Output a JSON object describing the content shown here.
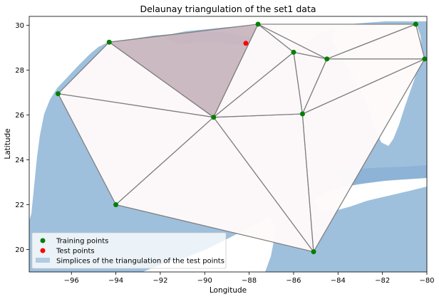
{
  "chart_data": {
    "type": "scatter",
    "title": "Delaunay triangulation of the set1 data",
    "xlabel": "Longitude",
    "ylabel": "Latitude",
    "xlim": [
      -97.9,
      -80.0
    ],
    "ylim": [
      19.0,
      30.4
    ],
    "x_ticks": [
      -96,
      -94,
      -92,
      -90,
      -88,
      -86,
      -84,
      -82,
      -80
    ],
    "y_ticks": [
      20,
      22,
      24,
      26,
      28,
      30
    ],
    "x_tick_labels": [
      "−96",
      "−94",
      "−92",
      "−90",
      "−88",
      "−86",
      "−84",
      "−82",
      "−80"
    ],
    "y_tick_labels": [
      "20",
      "22",
      "24",
      "26",
      "28",
      "30"
    ],
    "training_points": [
      {
        "x": -94.3,
        "y": 29.25
      },
      {
        "x": -87.6,
        "y": 30.05
      },
      {
        "x": -80.5,
        "y": 30.05
      },
      {
        "x": -86.0,
        "y": 28.8
      },
      {
        "x": -84.5,
        "y": 28.5
      },
      {
        "x": -80.1,
        "y": 28.5
      },
      {
        "x": -96.6,
        "y": 26.95
      },
      {
        "x": -89.6,
        "y": 25.9
      },
      {
        "x": -85.6,
        "y": 26.05
      },
      {
        "x": -94.0,
        "y": 22.0
      },
      {
        "x": -85.1,
        "y": 19.9
      }
    ],
    "test_points": [
      {
        "x": -88.15,
        "y": 29.2
      }
    ],
    "triangles": [
      [
        0,
        1,
        7
      ],
      [
        0,
        6,
        7
      ],
      [
        6,
        7,
        9
      ],
      [
        7,
        9,
        10
      ],
      [
        7,
        8,
        10
      ],
      [
        8,
        10,
        5
      ],
      [
        1,
        3,
        7
      ],
      [
        3,
        7,
        8
      ],
      [
        3,
        4,
        8
      ],
      [
        4,
        5,
        8
      ],
      [
        1,
        3,
        4
      ],
      [
        1,
        2,
        4
      ],
      [
        2,
        4,
        5
      ]
    ],
    "highlighted_triangles": [
      0
    ],
    "legend": {
      "placement": "lower-left",
      "entries": [
        {
          "label": "Training points",
          "marker": "circle",
          "color": "#008000"
        },
        {
          "label": "Test points",
          "marker": "circle",
          "color": "#ff0000"
        },
        {
          "label": "Simplices of the triangulation of the test points",
          "marker": "patch",
          "color": "#b0cce4"
        }
      ]
    },
    "colors": {
      "ocean": "#a9c7e0",
      "ocean_dark": "#8fb6d8",
      "land": "#ffffff",
      "triangle_fill": "#fffafa",
      "highlight_fill": "#d4b8bd",
      "edge": "#808080",
      "training": "#008000",
      "test": "#ff0000"
    }
  }
}
